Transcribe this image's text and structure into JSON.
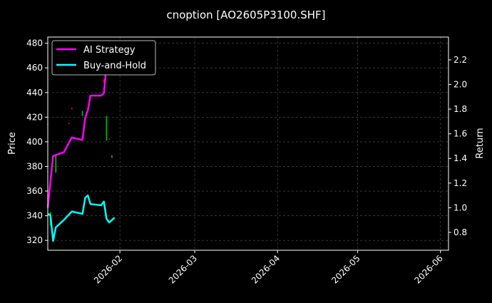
{
  "chart_data": {
    "type": "line",
    "title": "cnoption [AO2605P3100.SHF]",
    "ylabel": "Price",
    "y2label": "Return",
    "xlim": [
      "2026-01-05",
      "2026-06-04"
    ],
    "ylim": [
      312,
      485
    ],
    "y2lim": [
      0.655,
      2.385
    ],
    "x_ticks": [
      "2026-02",
      "2026-03",
      "2026-04",
      "2026-05",
      "2026-06"
    ],
    "x_tick_dates": [
      "2026-02-01",
      "2026-03-01",
      "2026-04-01",
      "2026-05-01",
      "2026-06-01"
    ],
    "y_ticks": [
      320,
      340,
      360,
      380,
      400,
      420,
      440,
      460,
      480
    ],
    "y2_ticks": [
      "0.8",
      "1.0",
      "1.2",
      "1.4",
      "1.6",
      "1.8",
      "2.0",
      "2.2"
    ],
    "grid": true,
    "legend_placement": "upper-left",
    "colors": {
      "background": "#000000",
      "ai": "#ff00ff",
      "bh": "#00ffff",
      "up": "#00aa00",
      "down": "#dd0000",
      "grid": "#555555"
    },
    "candles": [
      {
        "date": "2026-01-05",
        "open": 414.5,
        "close": 414.0,
        "high": 415,
        "low": 414
      },
      {
        "date": "2026-01-06",
        "open": 332,
        "close": 343,
        "high": 343,
        "low": 332
      },
      {
        "date": "2026-01-08",
        "open": 375,
        "close": 389,
        "high": 389,
        "low": 375
      },
      {
        "date": "2026-01-13",
        "open": 415.3,
        "close": 414.8,
        "high": 415.5,
        "low": 414.5
      },
      {
        "date": "2026-01-14",
        "open": 427.5,
        "close": 426.5,
        "high": 428,
        "low": 426
      },
      {
        "date": "2026-01-18",
        "open": 421,
        "close": 425,
        "high": 425,
        "low": 421
      },
      {
        "date": "2026-01-21",
        "open": 454,
        "close": 456,
        "high": 456,
        "low": 454
      },
      {
        "date": "2026-01-26",
        "open": 451,
        "close": 448,
        "high": 451,
        "low": 448
      },
      {
        "date": "2026-01-27",
        "open": 401,
        "close": 421,
        "high": 421,
        "low": 401
      },
      {
        "date": "2026-01-28",
        "open": 402.5,
        "close": 402,
        "high": 403,
        "low": 402
      },
      {
        "date": "2026-01-29",
        "open": 387,
        "close": 389,
        "high": 389,
        "low": 387
      }
    ],
    "series": [
      {
        "name": "AI Strategy",
        "x": [
          "2026-01-05",
          "2026-01-07",
          "2026-01-11",
          "2026-01-14",
          "2026-01-18",
          "2026-01-19",
          "2026-01-20",
          "2026-01-21",
          "2026-01-25",
          "2026-01-26",
          "2026-01-27",
          "2026-01-29"
        ],
        "values": [
          1.0,
          1.42,
          1.45,
          1.57,
          1.55,
          1.73,
          1.79,
          1.91,
          1.91,
          1.93,
          2.16,
          2.29
        ]
      },
      {
        "name": "Buy-and-Hold",
        "x": [
          "2026-01-05",
          "2026-01-06",
          "2026-01-07",
          "2026-01-08",
          "2026-01-11",
          "2026-01-14",
          "2026-01-18",
          "2026-01-19",
          "2026-01-20",
          "2026-01-21",
          "2026-01-25",
          "2026-01-26",
          "2026-01-27",
          "2026-01-28",
          "2026-01-30"
        ],
        "values": [
          0.95,
          0.94,
          0.73,
          0.84,
          0.9,
          0.97,
          0.95,
          1.08,
          1.1,
          1.03,
          1.02,
          1.05,
          0.91,
          0.88,
          0.92
        ]
      }
    ]
  }
}
